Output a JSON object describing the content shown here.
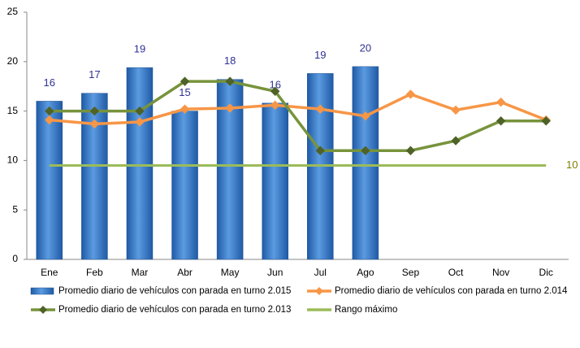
{
  "chart_data": {
    "type": "combo",
    "categories": [
      "Ene",
      "Feb",
      "Mar",
      "Abr",
      "May",
      "Jun",
      "Jul",
      "Ago",
      "Sep",
      "Oct",
      "Nov",
      "Dic"
    ],
    "ylim": [
      0,
      25
    ],
    "yticks": [
      0,
      5,
      10,
      15,
      20,
      25
    ],
    "grid": false,
    "legend": "bottom",
    "series": [
      {
        "name": "Promedio diario de vehículos con parada en turno 2.015",
        "kind": "bar",
        "color": "#3a78c9",
        "values": [
          16,
          16.8,
          19.4,
          15,
          18.2,
          15.8,
          18.8,
          19.5,
          null,
          null,
          null,
          null
        ],
        "value_labels": [
          "16",
          "17",
          "19",
          "15",
          "18",
          "16",
          "19",
          "20",
          null,
          null,
          null,
          null
        ]
      },
      {
        "name": "Promedio diario de vehículos con parada en turno 2.014",
        "kind": "line",
        "color": "#f79646",
        "marker_color": "#f79646",
        "values": [
          14.1,
          13.7,
          13.9,
          15.2,
          15.3,
          15.6,
          15.2,
          14.5,
          16.7,
          15.1,
          15.9,
          14.1
        ]
      },
      {
        "name": "Promedio diario de vehículos con parada en turno 2.013",
        "kind": "line",
        "color": "#77933c",
        "marker_color": "#4f6228",
        "values": [
          15,
          15,
          15,
          18,
          18,
          17,
          11,
          11,
          11,
          12,
          14,
          14
        ]
      },
      {
        "name": "Rango máximo",
        "kind": "flat",
        "color": "#9bbb59",
        "values": [
          9.5,
          9.5,
          9.5,
          9.5,
          9.5,
          9.5,
          9.5,
          9.5,
          9.5,
          9.5,
          9.5,
          9.5
        ],
        "value_labels": [
          null,
          null,
          null,
          null,
          null,
          null,
          null,
          null,
          null,
          null,
          null,
          "10"
        ]
      }
    ]
  }
}
